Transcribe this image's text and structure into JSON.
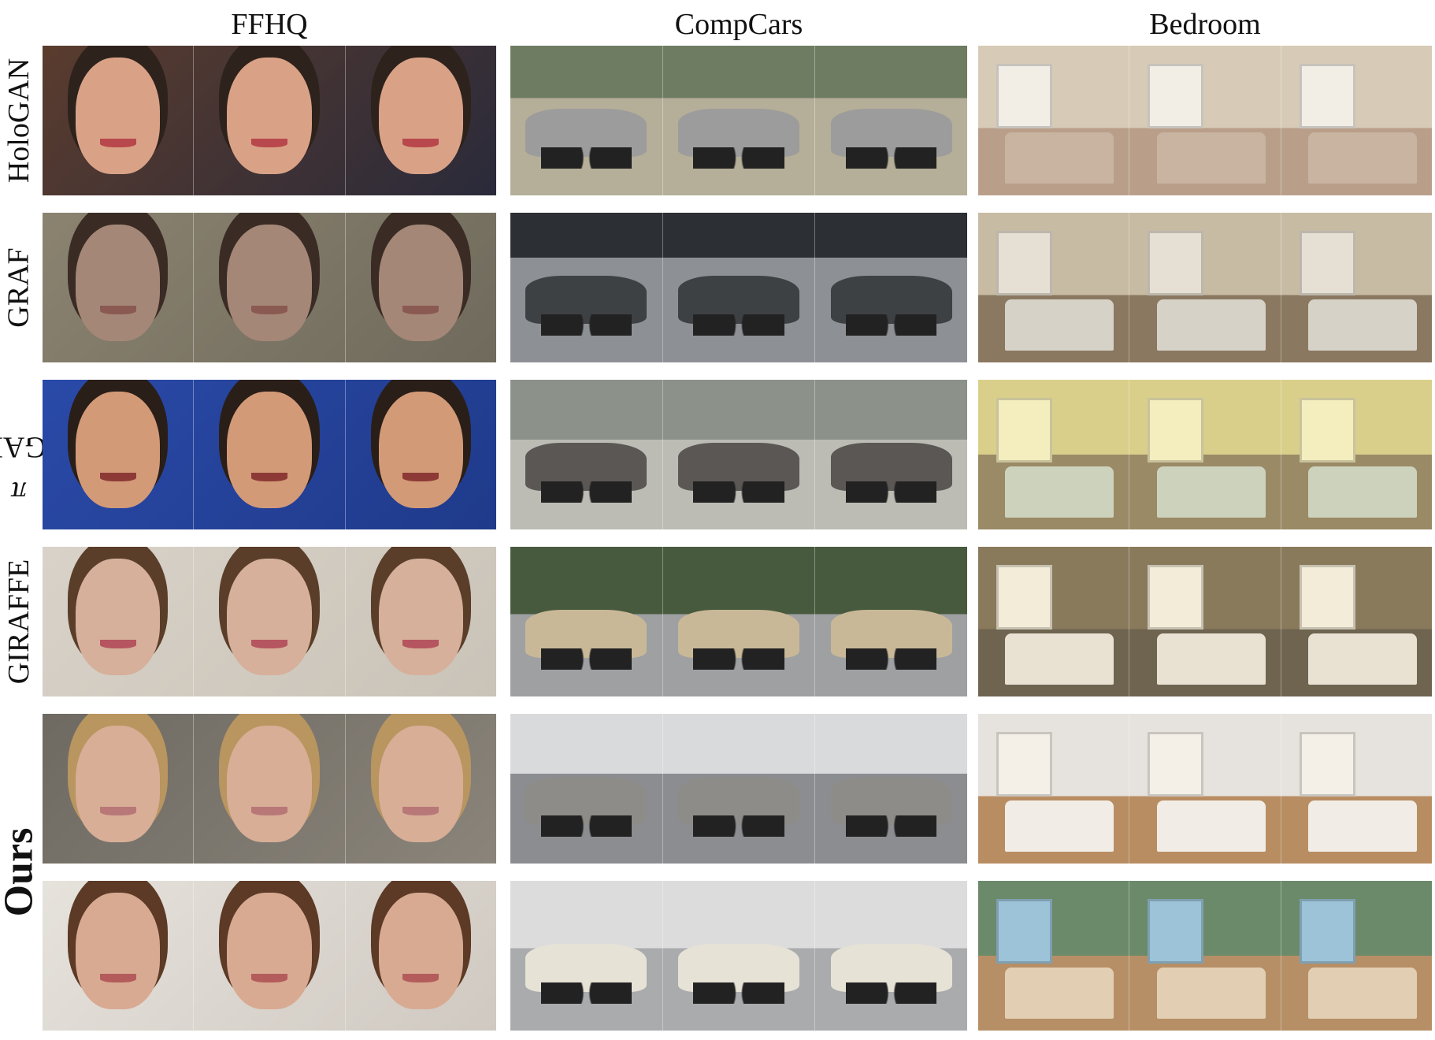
{
  "columns": [
    {
      "key": "ffhq",
      "label": "FFHQ"
    },
    {
      "key": "compcars",
      "label": "CompCars"
    },
    {
      "key": "bedroom",
      "label": "Bedroom"
    }
  ],
  "rows": [
    {
      "label": "HoloGAN"
    },
    {
      "label": "GRAF"
    },
    {
      "label_prefix": "π",
      "label_suffix": "-GAN"
    },
    {
      "label": "GIRAFFE"
    }
  ],
  "ours_label": "Ours",
  "cell_icons": {
    "ffhq": "face-photo",
    "compcars": "car-photo",
    "bedroom": "bedroom-photo"
  }
}
